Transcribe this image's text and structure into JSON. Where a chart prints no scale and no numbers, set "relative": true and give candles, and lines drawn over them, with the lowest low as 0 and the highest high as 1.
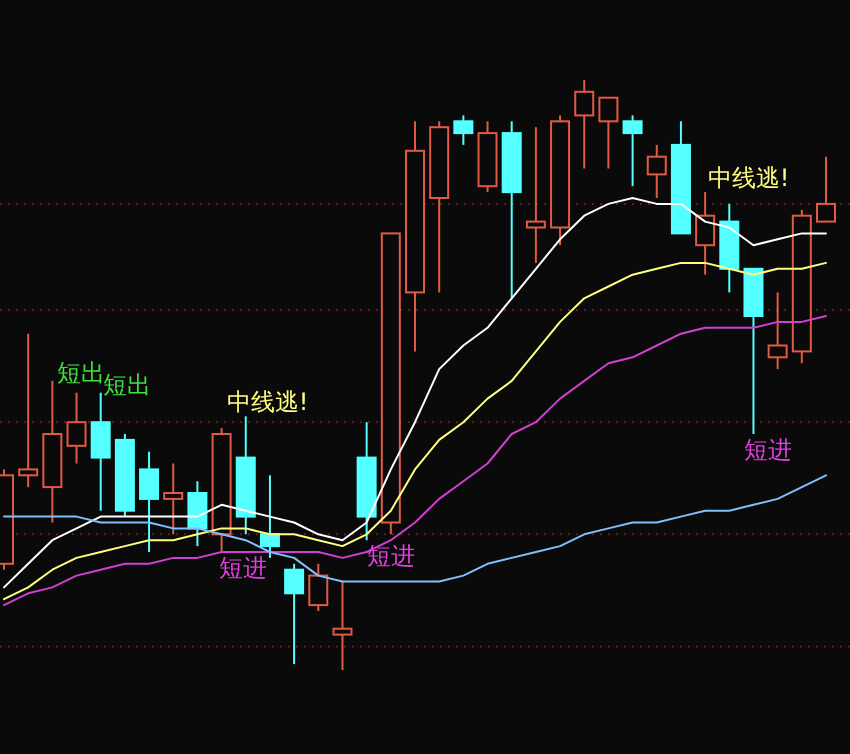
{
  "chart_data": {
    "type": "candlestick",
    "relative": true,
    "ref_lines": [
      {
        "axis": "y",
        "value": 0.79,
        "color": "#6a1a1a",
        "line_style": "dotted"
      },
      {
        "axis": "y",
        "value": 0.61,
        "color": "#6a1a1a",
        "line_style": "dotted"
      },
      {
        "axis": "y",
        "value": 0.42,
        "color": "#6a1a1a",
        "line_style": "dotted"
      },
      {
        "axis": "y",
        "value": 0.23,
        "color": "#6a1a1a",
        "line_style": "dotted"
      },
      {
        "axis": "y",
        "value": 0.04,
        "color": "#6a1a1a",
        "line_style": "dotted"
      }
    ],
    "categories": [
      null,
      null,
      null,
      null,
      null,
      null,
      null,
      null,
      null,
      null,
      null,
      null,
      null,
      null,
      null,
      null,
      null,
      null,
      null,
      null,
      null,
      null,
      null,
      null,
      null,
      null,
      null,
      null,
      null,
      null,
      null,
      null,
      null,
      null,
      null
    ],
    "ohlc": [
      [
        0.18,
        0.34,
        0.17,
        0.33
      ],
      [
        0.33,
        0.57,
        0.31,
        0.34
      ],
      [
        0.31,
        0.49,
        0.25,
        0.4
      ],
      [
        0.38,
        0.47,
        0.35,
        0.42
      ],
      [
        0.42,
        0.47,
        0.27,
        0.36
      ],
      [
        0.39,
        0.4,
        0.26,
        0.27
      ],
      [
        0.34,
        0.37,
        0.2,
        0.29
      ],
      [
        0.29,
        0.35,
        0.23,
        0.3
      ],
      [
        0.3,
        0.32,
        0.21,
        0.24
      ],
      [
        0.23,
        0.41,
        0.2,
        0.4
      ],
      [
        0.36,
        0.43,
        0.23,
        0.26
      ],
      [
        0.23,
        0.33,
        0.19,
        0.21
      ],
      [
        0.17,
        0.18,
        0.01,
        0.13
      ],
      [
        0.11,
        0.18,
        0.1,
        0.16
      ],
      [
        0.06,
        0.15,
        0,
        0.07
      ],
      [
        0.36,
        0.42,
        0.22,
        0.26
      ],
      [
        0.25,
        0.74,
        0.23,
        0.74
      ],
      [
        0.64,
        0.93,
        0.54,
        0.88
      ],
      [
        0.8,
        0.93,
        0.64,
        0.92
      ],
      [
        0.93,
        0.94,
        0.89,
        0.91
      ],
      [
        0.82,
        0.93,
        0.81,
        0.91
      ],
      [
        0.91,
        0.93,
        0.63,
        0.81
      ],
      [
        0.75,
        0.92,
        0.69,
        0.76
      ],
      [
        0.75,
        0.94,
        0.72,
        0.93
      ],
      [
        0.94,
        1,
        0.85,
        0.98
      ],
      [
        0.93,
        0.97,
        0.85,
        0.97
      ],
      [
        0.93,
        0.94,
        0.82,
        0.91
      ],
      [
        0.84,
        0.89,
        0.8,
        0.87
      ],
      [
        0.89,
        0.93,
        0.74,
        0.74
      ],
      [
        0.72,
        0.81,
        0.67,
        0.77
      ],
      [
        0.76,
        0.79,
        0.64,
        0.68
      ],
      [
        0.68,
        0.68,
        0.4,
        0.6
      ],
      [
        0.53,
        0.64,
        0.51,
        0.55
      ],
      [
        0.54,
        0.78,
        0.52,
        0.77
      ],
      [
        0.76,
        0.87,
        0.76,
        0.79
      ]
    ],
    "series": [
      {
        "type": "line",
        "color": "#ffffff",
        "values": [
          0.14,
          0.18,
          0.22,
          0.24,
          0.26,
          0.26,
          0.26,
          0.26,
          0.26,
          0.28,
          0.27,
          0.26,
          0.25,
          0.23,
          0.22,
          0.25,
          0.34,
          0.42,
          0.51,
          0.55,
          0.58,
          0.63,
          0.68,
          0.73,
          0.77,
          0.79,
          0.8,
          0.79,
          0.79,
          0.76,
          0.75,
          0.72,
          0.73,
          0.74,
          0.74
        ]
      },
      {
        "type": "line",
        "color": "#ffff80",
        "values": [
          0.12,
          0.14,
          0.17,
          0.19,
          0.2,
          0.21,
          0.22,
          0.22,
          0.23,
          0.24,
          0.24,
          0.23,
          0.23,
          0.22,
          0.21,
          0.23,
          0.27,
          0.34,
          0.39,
          0.42,
          0.46,
          0.49,
          0.54,
          0.59,
          0.63,
          0.65,
          0.67,
          0.68,
          0.69,
          0.69,
          0.68,
          0.67,
          0.68,
          0.68,
          0.69
        ]
      },
      {
        "type": "line",
        "color": "#d040d0",
        "values": [
          0.11,
          0.13,
          0.14,
          0.16,
          0.17,
          0.18,
          0.18,
          0.19,
          0.19,
          0.2,
          0.2,
          0.2,
          0.2,
          0.2,
          0.19,
          0.2,
          0.22,
          0.25,
          0.29,
          0.32,
          0.35,
          0.4,
          0.42,
          0.46,
          0.49,
          0.52,
          0.53,
          0.55,
          0.57,
          0.58,
          0.58,
          0.58,
          0.59,
          0.59,
          0.6
        ]
      },
      {
        "type": "line",
        "color": "#80c0ff",
        "values": [
          0.26,
          0.26,
          0.26,
          0.26,
          0.25,
          0.25,
          0.25,
          0.24,
          0.24,
          0.23,
          0.22,
          0.2,
          0.19,
          0.16,
          0.15,
          0.15,
          0.15,
          0.15,
          0.15,
          0.16,
          0.18,
          0.19,
          0.2,
          0.21,
          0.23,
          0.24,
          0.25,
          0.25,
          0.26,
          0.27,
          0.27,
          0.28,
          0.29,
          0.31,
          0.33
        ]
      }
    ],
    "annotations": [
      "短出",
      "短出",
      "中线逃!",
      "短进",
      "短进",
      "中线逃!",
      "短进"
    ]
  }
}
